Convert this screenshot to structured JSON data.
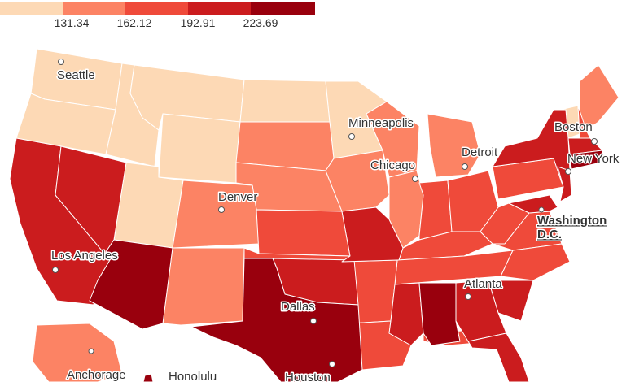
{
  "legend": {
    "colors": [
      "#fdd9b5",
      "#fc8364",
      "#ef4a3a",
      "#cb1c1e",
      "#99000d"
    ],
    "thresholds": [
      "131.34",
      "162.12",
      "192.91",
      "223.69"
    ]
  },
  "cities": {
    "seattle": "Seattle",
    "minneapolis": "Minneapolis",
    "boston": "Boston",
    "detroit": "Detroit",
    "chicago": "Chicago",
    "new_york": "New York",
    "denver": "Denver",
    "washington_dc_line1": "Washington",
    "washington_dc_line2": "D.C.",
    "los_angeles": "Los Angeles",
    "atlanta": "Atlanta",
    "dallas": "Dallas",
    "anchorage": "Anchorage",
    "honolulu": "Honolulu",
    "houston": "Houston"
  }
}
